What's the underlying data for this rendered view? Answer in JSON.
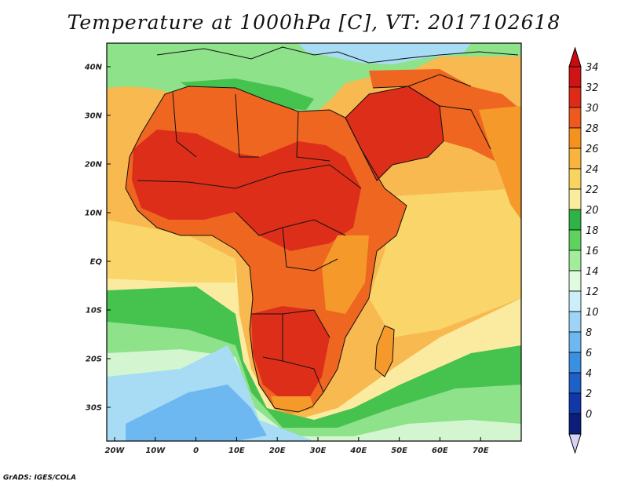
{
  "title": "Temperature at 1000hPa [C], VT: 2017102618",
  "footer": "GrADS: IGES/COLA",
  "lat_ticks": [
    "40N",
    "30N",
    "20N",
    "10N",
    "EQ",
    "10S",
    "20S",
    "30S"
  ],
  "lon_ticks": [
    "20W",
    "10W",
    "0",
    "10E",
    "20E",
    "30E",
    "40E",
    "50E",
    "60E",
    "70E"
  ],
  "colorbar": {
    "labels": [
      "34",
      "32",
      "30",
      "28",
      "26",
      "24",
      "22",
      "20",
      "18",
      "16",
      "14",
      "12",
      "10",
      "8",
      "6",
      "4",
      "2",
      "0"
    ],
    "colors": [
      "#ce1414",
      "#e02a18",
      "#ee5a1e",
      "#f5921f",
      "#f8b43d",
      "#f9d45e",
      "#faeda0",
      "#2fb346",
      "#5fd15f",
      "#a2ec9c",
      "#e1fbe0",
      "#cdeefb",
      "#9dd4f7",
      "#6db8f1",
      "#3b8fe0",
      "#1e5fc8",
      "#1138a6",
      "#0b1e7a"
    ],
    "top_arrow_color": "#cc0a10",
    "bottom_arrow_color": "#d8d2f8"
  },
  "map_colors": {
    "ocean_warm": "#f8b950",
    "ocean_mild": "#f9d56a",
    "ocean_pale": "#fbeba0",
    "green": "#46c24e",
    "light_green": "#8ee28a",
    "pale_green": "#d3f6d0",
    "light_blue": "#a8dcf5",
    "blue": "#6db8f1",
    "land_hot": "#dd2e1a",
    "land_warm": "#ee6620",
    "land_orange": "#f59a2a",
    "border": "#111111"
  }
}
